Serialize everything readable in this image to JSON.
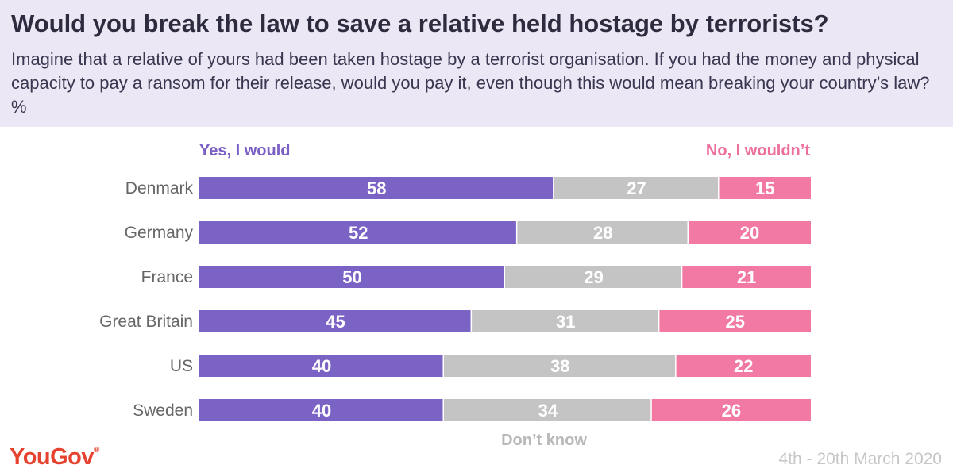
{
  "title": "Would you break the law to save a relative held hostage by terrorists?",
  "subtitle": "Imagine that a relative of yours had been taken hostage by a terrorist organisation. If you had the money and physical capacity to pay a ransom for their release, would you pay it, even though this would mean breaking your country’s law? %",
  "legend": {
    "yes": "Yes, I would",
    "no": "No, I wouldn’t",
    "dont_know": "Don’t know"
  },
  "brand": {
    "name": "YouGov",
    "mark": "®"
  },
  "date": "4th - 20th March 2020",
  "colors": {
    "yes": "#7b62c5",
    "dont_know": "#c4c4c4",
    "no": "#f279a3",
    "header_bg": "#ebe7f5",
    "brand": "#e5432f"
  },
  "chart_data": {
    "type": "bar",
    "orientation": "horizontal",
    "stacked": true,
    "categories": [
      "Denmark",
      "Germany",
      "France",
      "Great Britain",
      "US",
      "Sweden"
    ],
    "series": [
      {
        "name": "Yes, I would",
        "values": [
          58,
          52,
          50,
          45,
          40,
          40
        ]
      },
      {
        "name": "Don’t know",
        "values": [
          27,
          28,
          29,
          31,
          38,
          34
        ]
      },
      {
        "name": "No, I wouldn’t",
        "values": [
          15,
          20,
          21,
          25,
          22,
          26
        ]
      }
    ],
    "data_labels": true,
    "grid": false
  }
}
